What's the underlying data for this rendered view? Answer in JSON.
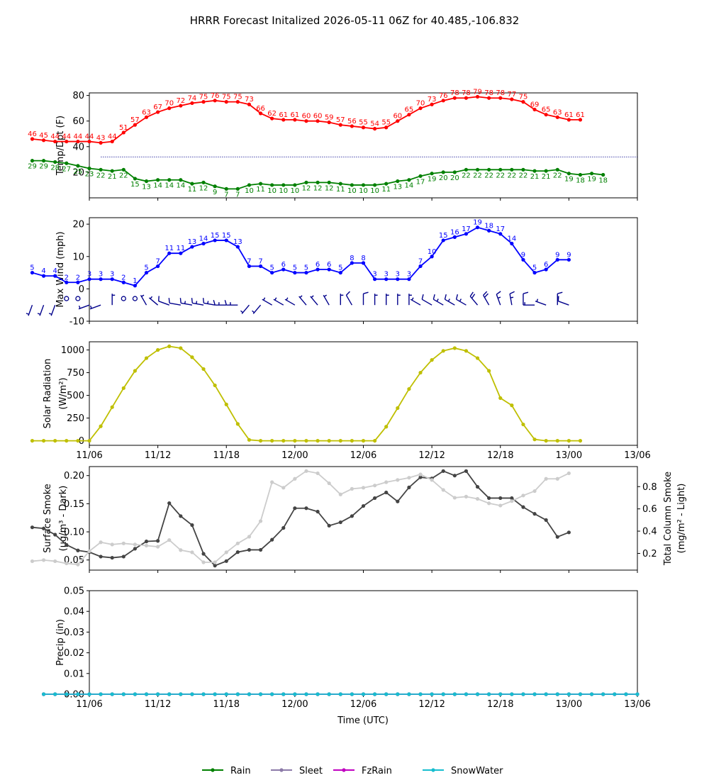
{
  "title": "HRRR Forecast Initalized 2026-05-11 06Z for 40.485,-106.832",
  "x_axis": {
    "label": "Time (UTC)",
    "ticks": [
      "11/06",
      "11/12",
      "11/18",
      "12/00",
      "12/06",
      "12/12",
      "12/18",
      "13/00",
      "13/06"
    ]
  },
  "legend": {
    "placement": "bottom-center",
    "items": [
      {
        "name": "Rain",
        "color": "#008000"
      },
      {
        "name": "Sleet",
        "color": "#8c7aa8"
      },
      {
        "name": "FzRain",
        "color": "#c000c0"
      },
      {
        "name": "SnowWater",
        "color": "#17becf"
      }
    ]
  },
  "chart_data": [
    {
      "type": "line",
      "ylabel": "Temp/Dpt (F)",
      "ylim": [
        0,
        82
      ],
      "yticks": [
        20,
        40,
        60,
        80
      ],
      "hours_from": 1,
      "reference_line": {
        "value": 32,
        "color": "#00008b",
        "style": "dotted"
      },
      "series": [
        {
          "color": "#ff0000",
          "labels": true,
          "values": [
            46,
            45,
            44,
            44,
            44,
            44,
            43,
            44,
            51,
            57,
            63,
            67,
            70,
            72,
            74,
            75,
            76,
            75,
            75,
            73,
            66,
            62,
            61,
            61,
            60,
            60,
            59,
            57,
            56,
            55,
            54,
            55,
            60,
            65,
            70,
            73,
            76,
            78,
            78,
            79,
            78,
            78,
            77,
            75,
            69,
            65,
            63,
            61,
            61
          ]
        },
        {
          "color": "#008000",
          "labels": true,
          "values": [
            29,
            29,
            28,
            27,
            25,
            23,
            22,
            21,
            22,
            15,
            13,
            14,
            14,
            14,
            11,
            12,
            9,
            7,
            7,
            10,
            11,
            10,
            10,
            10,
            12,
            12,
            12,
            11,
            10,
            10,
            10,
            11,
            13,
            14,
            17,
            19,
            20,
            20,
            22,
            22,
            22,
            22,
            22,
            22,
            21,
            21,
            22,
            19,
            18,
            19,
            18
          ]
        }
      ]
    },
    {
      "type": "line",
      "ylabel": "Max Wind (mph)",
      "ylim": [
        -10,
        22
      ],
      "yticks": [
        -10,
        0,
        10,
        20
      ],
      "hours_from": 1,
      "series": [
        {
          "color": "#0000ff",
          "labels": true,
          "values": [
            5,
            4,
            4,
            2,
            2,
            3,
            3,
            3,
            2,
            1,
            5,
            7,
            11,
            11,
            13,
            14,
            15,
            15,
            13,
            7,
            7,
            5,
            6,
            5,
            5,
            6,
            6,
            5,
            8,
            8,
            3,
            3,
            3,
            3,
            7,
            10,
            15,
            16,
            17,
            19,
            18,
            17,
            14,
            9,
            5,
            6,
            9,
            9
          ]
        }
      ],
      "wind_barbs": {
        "color": "#00008b",
        "speeds": [
          5,
          4,
          4,
          2,
          2,
          3,
          3,
          3,
          2,
          1,
          5,
          7,
          11,
          11,
          13,
          14,
          15,
          15,
          13,
          7,
          7,
          5,
          6,
          5,
          5,
          6,
          6,
          5,
          8,
          8,
          3,
          3,
          3,
          3,
          7,
          10,
          15,
          16,
          17,
          19,
          18,
          17,
          14,
          9,
          5,
          6,
          9,
          9
        ],
        "directions_deg": [
          200,
          200,
          200,
          0,
          0,
          250,
          250,
          0,
          0,
          0,
          330,
          310,
          290,
          280,
          280,
          280,
          280,
          270,
          270,
          220,
          220,
          300,
          300,
          300,
          320,
          320,
          330,
          0,
          330,
          0,
          0,
          0,
          0,
          0,
          300,
          300,
          300,
          300,
          300,
          320,
          330,
          340,
          350,
          0,
          270,
          290,
          0,
          290
        ]
      }
    },
    {
      "type": "line",
      "ylabel": "Solar Radiation (W/m²)",
      "ylim": [
        -50,
        1090
      ],
      "yticks": [
        0,
        250,
        500,
        750,
        1000
      ],
      "hours_from": 1,
      "series": [
        {
          "color": "#bfbf00",
          "values": [
            0,
            0,
            0,
            0,
            0,
            0,
            160,
            370,
            580,
            770,
            910,
            1000,
            1040,
            1020,
            920,
            790,
            610,
            400,
            185,
            10,
            0,
            0,
            0,
            0,
            0,
            0,
            0,
            0,
            0,
            0,
            0,
            155,
            360,
            570,
            750,
            890,
            990,
            1020,
            990,
            910,
            770,
            470,
            390,
            180,
            15,
            0,
            0,
            0,
            0
          ]
        }
      ]
    },
    {
      "type": "line",
      "ylabel": "Surface Smoke (μg/m³ - Dark)",
      "ylim": [
        0.032,
        0.216
      ],
      "yticks": [
        0.05,
        0.1,
        0.15,
        0.2
      ],
      "y2label": "Total Column Smoke (mg/m² - Light)",
      "y2lim": [
        0.05,
        0.98
      ],
      "y2ticks": [
        0.2,
        0.4,
        0.6,
        0.8
      ],
      "hours_from": 1,
      "series": [
        {
          "color": "#444444",
          "axis": "left",
          "values": [
            0.108,
            0.106,
            0.095,
            0.077,
            0.067,
            0.064,
            0.056,
            0.054,
            0.056,
            0.07,
            0.083,
            0.084,
            0.151,
            0.128,
            0.112,
            0.061,
            0.04,
            0.048,
            0.064,
            0.068,
            0.068,
            0.086,
            0.107,
            0.142,
            0.142,
            0.136,
            0.111,
            0.117,
            0.128,
            0.146,
            0.16,
            0.17,
            0.154,
            0.179,
            0.197,
            0.195,
            0.208,
            0.2,
            0.208,
            0.18,
            0.16,
            0.16,
            0.16,
            0.144,
            0.132,
            0.121,
            0.091,
            0.099
          ]
        },
        {
          "color": "#cccccc",
          "axis": "right",
          "values": [
            0.13,
            0.14,
            0.13,
            0.11,
            0.1,
            0.22,
            0.3,
            0.28,
            0.29,
            0.28,
            0.27,
            0.26,
            0.32,
            0.23,
            0.21,
            0.12,
            0.12,
            0.21,
            0.29,
            0.35,
            0.49,
            0.84,
            0.79,
            0.87,
            0.94,
            0.92,
            0.83,
            0.73,
            0.78,
            0.79,
            0.81,
            0.84,
            0.86,
            0.88,
            0.91,
            0.86,
            0.77,
            0.7,
            0.71,
            0.69,
            0.65,
            0.63,
            0.67,
            0.72,
            0.76,
            0.87,
            0.87,
            0.92
          ]
        }
      ]
    },
    {
      "type": "line",
      "ylabel": "Precip (in)",
      "ylim": [
        0,
        0.05
      ],
      "yticks": [
        0.0,
        0.01,
        0.02,
        0.03,
        0.04,
        0.05
      ],
      "hours_from": 2,
      "series": [
        {
          "name": "Rain",
          "color": "#008000",
          "value": 0
        },
        {
          "name": "Sleet",
          "color": "#8c7aa8",
          "value": 0
        },
        {
          "name": "FzRain",
          "color": "#c000c0",
          "value": 0
        },
        {
          "name": "SnowWater",
          "color": "#17becf",
          "value": 0
        }
      ]
    }
  ]
}
